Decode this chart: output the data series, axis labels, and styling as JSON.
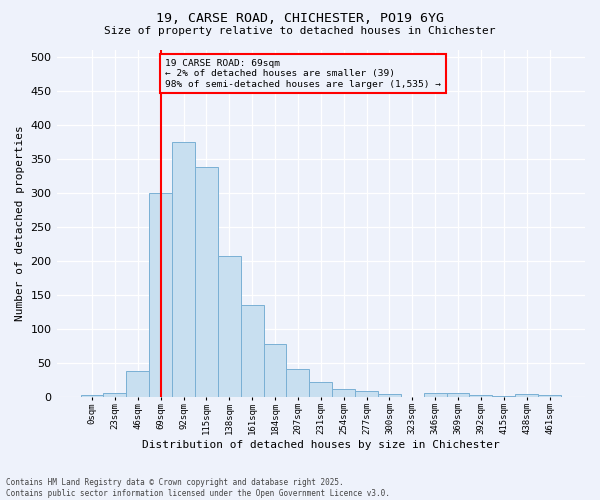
{
  "title_line1": "19, CARSE ROAD, CHICHESTER, PO19 6YG",
  "title_line2": "Size of property relative to detached houses in Chichester",
  "xlabel": "Distribution of detached houses by size in Chichester",
  "ylabel": "Number of detached properties",
  "bar_labels": [
    "0sqm",
    "23sqm",
    "46sqm",
    "69sqm",
    "92sqm",
    "115sqm",
    "138sqm",
    "161sqm",
    "184sqm",
    "207sqm",
    "231sqm",
    "254sqm",
    "277sqm",
    "300sqm",
    "323sqm",
    "346sqm",
    "369sqm",
    "392sqm",
    "415sqm",
    "438sqm",
    "461sqm"
  ],
  "bar_values": [
    3,
    5,
    37,
    300,
    375,
    338,
    207,
    135,
    78,
    40,
    22,
    11,
    9,
    4,
    0,
    6,
    5,
    2,
    1,
    4,
    3
  ],
  "bar_color": "#c8dff0",
  "bar_edge_color": "#7ab0d4",
  "vline_x_index": 3,
  "annotation_line1": "19 CARSE ROAD: 69sqm",
  "annotation_line2": "← 2% of detached houses are smaller (39)",
  "annotation_line3": "98% of semi-detached houses are larger (1,535) →",
  "background_color": "#eef2fb",
  "footer_line1": "Contains HM Land Registry data © Crown copyright and database right 2025.",
  "footer_line2": "Contains public sector information licensed under the Open Government Licence v3.0.",
  "ylim": [
    0,
    510
  ],
  "yticks": [
    0,
    50,
    100,
    150,
    200,
    250,
    300,
    350,
    400,
    450,
    500
  ]
}
